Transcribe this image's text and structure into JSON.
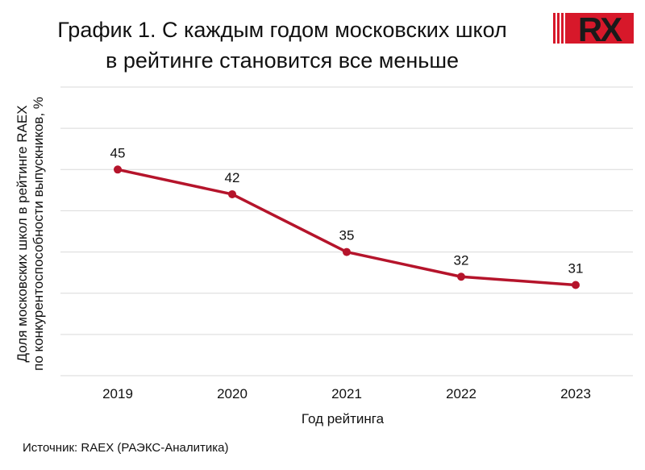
{
  "title_line1": "График 1. С каждым годом московских школ",
  "title_line2": "в рейтинге становится все меньше",
  "logo_text": "RX",
  "source": "Источник: RAEX (РАЭКС-Аналитика)",
  "colors": {
    "line": "#b5142b",
    "grid": "#d9d9d9",
    "logo_red": "#d7182a",
    "logo_dark": "#1a1a1a"
  },
  "chart_data": {
    "type": "line",
    "categories": [
      "2019",
      "2020",
      "2021",
      "2022",
      "2023"
    ],
    "values": [
      45,
      42,
      35,
      32,
      31
    ],
    "data_labels": [
      "45",
      "42",
      "35",
      "32",
      "31"
    ],
    "xlabel": "Год рейтинга",
    "ylabel_line1": "Доля московских школ в рейтинге RAEX",
    "ylabel_line2": "по конкурентоспособности выпускников, %",
    "ylim": [
      20,
      55
    ],
    "grid": true,
    "legend": "none"
  }
}
